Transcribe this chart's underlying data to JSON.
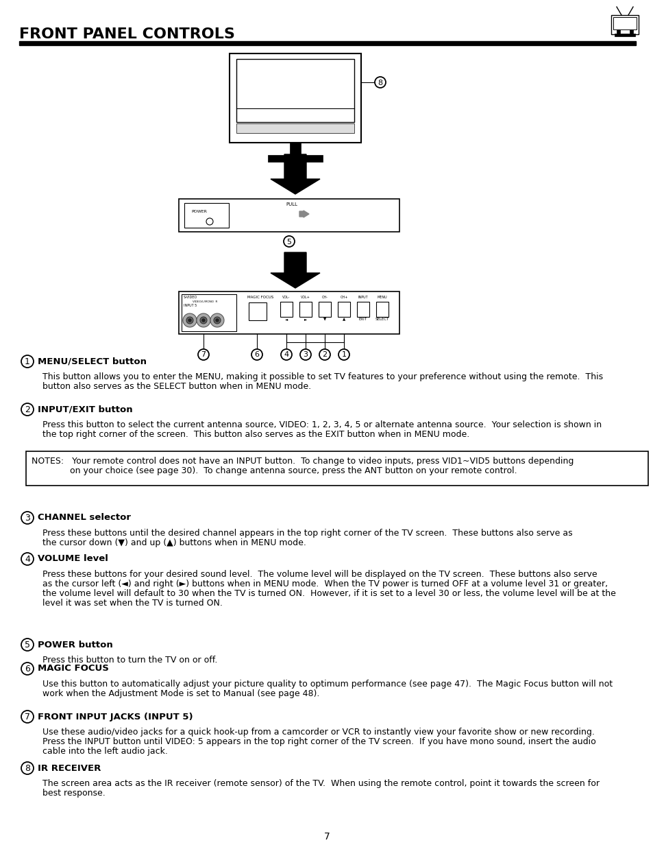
{
  "title": "FRONT PANEL CONTROLS",
  "page_number": "7",
  "bg_color": "#ffffff",
  "sections": [
    {
      "number": "1",
      "heading": "MENU/SELECT button",
      "body_lines": [
        "This button allows you to enter the MENU, making it possible to set TV features to your preference without using the remote.  This",
        "button also serves as the SELECT button when in MENU mode."
      ]
    },
    {
      "number": "2",
      "heading": "INPUT/EXIT button",
      "body_lines": [
        "Press this button to select the current antenna source, VIDEO: 1, 2, 3, 4, 5 or alternate antenna source.  Your selection is shown in",
        "the top right corner of the screen.  This button also serves as the EXIT button when in MENU mode."
      ]
    },
    {
      "number": "3",
      "heading": "CHANNEL selector",
      "body_lines": [
        "Press these buttons until the desired channel appears in the top right corner of the TV screen.  These buttons also serve as",
        "the cursor down (▼) and up (▲) buttons when in MENU mode."
      ]
    },
    {
      "number": "4",
      "heading": "VOLUME level",
      "body_lines": [
        "Press these buttons for your desired sound level.  The volume level will be displayed on the TV screen.  These buttons also serve",
        "as the cursor left (◄) and right (►) buttons when in MENU mode.  When the TV power is turned OFF at a volume level 31 or greater,",
        "the volume level will default to 30 when the TV is turned ON.  However, if it is set to a level 30 or less, the volume level will be at the",
        "level it was set when the TV is turned ON."
      ]
    },
    {
      "number": "5",
      "heading": "POWER button",
      "body_lines": [
        "Press this button to turn the TV on or off."
      ]
    },
    {
      "number": "6",
      "heading": "MAGIC FOCUS",
      "body_lines": [
        "Use this button to automatically adjust your picture quality to optimum performance (see page 47).  The Magic Focus button will not",
        "work when the Adjustment Mode is set to Manual (see page 48)."
      ]
    },
    {
      "number": "7",
      "heading": "FRONT INPUT JACKS (INPUT 5)",
      "body_lines": [
        "Use these audio/video jacks for a quick hook-up from a camcorder or VCR to instantly view your favorite show or new recording.",
        "Press the INPUT button until VIDEO: 5 appears in the top right corner of the TV screen.  If you have mono sound, insert the audio",
        "cable into the left audio jack."
      ]
    },
    {
      "number": "8",
      "heading": "IR RECEIVER",
      "body_lines": [
        "The screen area acts as the IR receiver (remote sensor) of the TV.  When using the remote control, point it towards the screen for",
        "best response."
      ]
    }
  ],
  "notes_line1": "NOTES:   Your remote control does not have an INPUT button.  To change to video inputs, press VID1~VID5 buttons depending",
  "notes_line2": "              on your choice (see page 30).  To change antenna source, press the ANT button on your remote control."
}
